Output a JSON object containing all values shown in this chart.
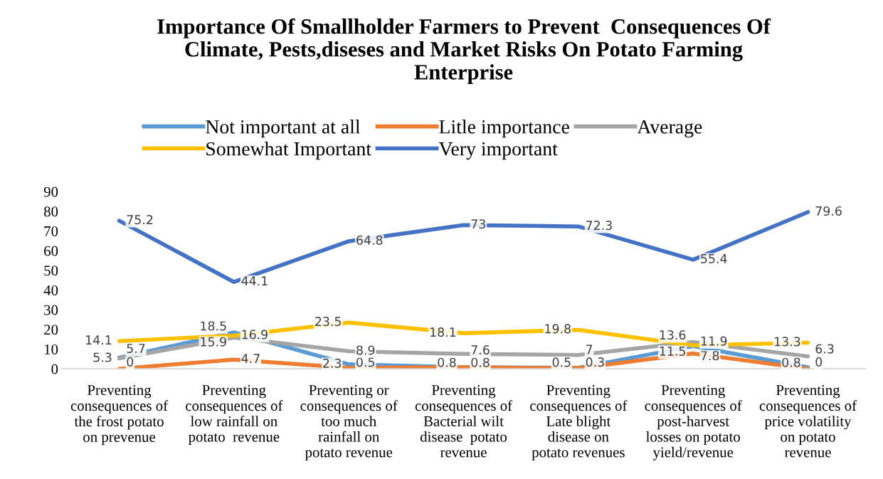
{
  "chart_data": {
    "type": "line",
    "title": "Importance Of Smallholder Farmers to Prevent  Consequences Of\nClimate, Pests,diseses and Market Risks On Potato Farming\nEnterprise",
    "categories": [
      "Preventing\nconsequences of\nthe frost potato\non prevenue",
      "Preventing\nconsequences of\nlow rainfall on\npotato  revenue",
      "Preventing or\nconsequences of\ntoo much\nrainfall on\npotato revenue",
      "Preventing\nconsequences of\nBacterial wilt\ndisease  potato\nrevenue",
      "Preventing\nconsequences of\nLate blight\ndisease on\npotato revenues",
      "Preventing\nconsequences of\npost-harvest\nlosses on potato\nyield/revenue",
      "Preventing\nconsequences of\nprice volatility\non potato\nrevenue"
    ],
    "series": [
      {
        "name": "Not important at all",
        "color": "#5b9bd5",
        "values": [
          5.7,
          18.5,
          2.3,
          0.8,
          0.5,
          11.5,
          0.8
        ]
      },
      {
        "name": "Litle importance",
        "color": "#ed7d31",
        "values": [
          0,
          4.7,
          0.5,
          0.8,
          0.3,
          7.8,
          0
        ]
      },
      {
        "name": "Average",
        "color": "#a5a5a5",
        "values": [
          5.3,
          15.9,
          8.9,
          7.6,
          7,
          13.6,
          6.3
        ]
      },
      {
        "name": "Somewhat Important",
        "color": "#ffc000",
        "values": [
          14.1,
          16.9,
          23.5,
          18.1,
          19.8,
          11.9,
          13.3
        ]
      },
      {
        "name": "Very important",
        "color": "#4472c4",
        "values": [
          75.2,
          44.1,
          64.8,
          73,
          72.3,
          55.4,
          79.6
        ]
      }
    ],
    "ylim": [
      0,
      90
    ],
    "yticks": [
      0,
      10,
      20,
      30,
      40,
      50,
      60,
      70,
      80,
      90
    ],
    "data_labels": true,
    "legend": "top",
    "grid": false,
    "marker": "none",
    "line_style": "solid"
  }
}
